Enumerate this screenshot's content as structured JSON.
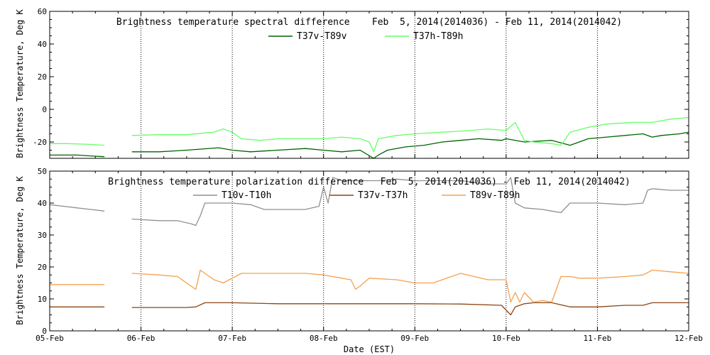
{
  "chart_data": [
    {
      "type": "line",
      "title": "Brightness temperature spectral difference    Feb  5, 2014(2014036) - Feb 11, 2014(2014042)",
      "ylabel": "Brightness Temperature, Deg K",
      "xlabel": "",
      "xlim": [
        0,
        7
      ],
      "ylim": [
        -30,
        60
      ],
      "yticks": [
        -20,
        0,
        20,
        40,
        60
      ],
      "yticklabels": [
        "-20",
        "0",
        "20",
        "40",
        "60"
      ],
      "grid_x": [
        1,
        2,
        3,
        4,
        5,
        6
      ],
      "series": [
        {
          "name": "T37v-T89v",
          "color": "#006400",
          "segments": [
            {
              "x": [
                0,
                0.15,
                0.3,
                0.45,
                0.6
              ],
              "y": [
                -28,
                -28,
                -28,
                -28.5,
                -29
              ]
            },
            {
              "x": [
                0.9,
                1.2,
                1.5,
                1.85,
                2.0,
                2.2,
                2.5,
                2.8,
                3.0,
                3.2,
                3.4,
                3.55,
                3.6,
                3.7,
                3.9,
                4.1,
                4.3,
                4.5,
                4.7,
                4.95,
                5.0,
                5.2,
                5.5,
                5.7,
                5.9,
                6.1,
                6.3,
                6.5,
                6.6,
                6.7,
                6.9,
                7.0
              ],
              "y": [
                -26,
                -26,
                -25,
                -23.5,
                -25,
                -26,
                -25,
                -24,
                -25,
                -26,
                -25,
                -30,
                -28,
                -25,
                -23,
                -22,
                -20,
                -19,
                -18,
                -19,
                -18,
                -20,
                -19,
                -22,
                -18,
                -17,
                -16,
                -15,
                -17,
                -16,
                -15,
                -14
              ]
            }
          ]
        },
        {
          "name": "T37h-T89h",
          "color": "#66ff66",
          "segments": [
            {
              "x": [
                0,
                0.2,
                0.45,
                0.6
              ],
              "y": [
                -21,
                -21,
                -21.5,
                -22
              ]
            },
            {
              "x": [
                0.9,
                1.2,
                1.5,
                1.8,
                1.9,
                2.0,
                2.1,
                2.3,
                2.5,
                2.8,
                3.0,
                3.2,
                3.4,
                3.5,
                3.55,
                3.6,
                3.8,
                4.0,
                4.3,
                4.6,
                4.8,
                5.0,
                5.1,
                5.2,
                5.3,
                5.5,
                5.6,
                5.7,
                5.9,
                6.1,
                6.4,
                6.6,
                6.8,
                7.0
              ],
              "y": [
                -16,
                -15.5,
                -15.5,
                -14,
                -12,
                -14,
                -18,
                -19,
                -18,
                -18,
                -18,
                -17,
                -18,
                -20,
                -26,
                -18,
                -16,
                -15,
                -14,
                -13,
                -12,
                -13,
                -8,
                -19,
                -20,
                -21,
                -22,
                -14,
                -11,
                -9,
                -8,
                -8,
                -6,
                -5
              ]
            }
          ]
        }
      ]
    },
    {
      "type": "line",
      "title": "Brightness temperature polarization difference   Feb  5, 2014(2014036) - Feb 11, 2014(2014042)",
      "ylabel": "Brightness Temperature, Deg K",
      "xlabel": "Date (EST)",
      "xlim": [
        0,
        7
      ],
      "ylim": [
        0,
        50
      ],
      "yticks": [
        0,
        10,
        20,
        30,
        40,
        50
      ],
      "yticklabels": [
        "0",
        "10",
        "20",
        "30",
        "40",
        "50"
      ],
      "grid_x": [
        1,
        2,
        3,
        4,
        5,
        6
      ],
      "xticklabels": [
        "05-Feb",
        "06-Feb",
        "07-Feb",
        "08-Feb",
        "09-Feb",
        "10-Feb",
        "11-Feb",
        "12-Feb"
      ],
      "series": [
        {
          "name": "T10v-T10h",
          "color": "#909090",
          "segments": [
            {
              "x": [
                0,
                0.15,
                0.3,
                0.45,
                0.6
              ],
              "y": [
                39.5,
                39,
                38.5,
                38,
                37.5
              ]
            },
            {
              "x": [
                0.9,
                1.2,
                1.4,
                1.55,
                1.6,
                1.65,
                1.7,
                1.75,
                1.8,
                2.0,
                2.2,
                2.35,
                2.4,
                2.5,
                2.6,
                2.8,
                2.95,
                3.0,
                3.05,
                3.1,
                3.2,
                3.3,
                3.4,
                3.6,
                3.8,
                4.0,
                4.2,
                4.5,
                4.8,
                5.0,
                5.05,
                5.1,
                5.2,
                5.4,
                5.5,
                5.6,
                5.7,
                6.0,
                6.3,
                6.5,
                6.55,
                6.6,
                6.8,
                7.0
              ],
              "y": [
                35,
                34.5,
                34.5,
                33.5,
                33,
                36,
                40,
                40,
                40,
                40,
                39.5,
                38,
                38,
                38,
                38,
                38,
                39,
                45,
                40,
                48,
                47,
                47,
                47,
                47,
                47.5,
                47,
                47,
                47,
                46,
                46,
                48,
                40,
                38.5,
                38,
                37.5,
                37,
                40,
                40,
                39.5,
                40,
                44,
                44.5,
                44,
                44
              ]
            }
          ]
        },
        {
          "name": "T37v-T37h",
          "color": "#8b4513",
          "segments": [
            {
              "x": [
                0,
                0.3,
                0.6
              ],
              "y": [
                7.5,
                7.5,
                7.5
              ]
            },
            {
              "x": [
                0.9,
                1.2,
                1.5,
                1.6,
                1.7,
                2.0,
                2.5,
                3.0,
                3.5,
                4.0,
                4.5,
                4.95,
                5.05,
                5.1,
                5.2,
                5.3,
                5.5,
                5.7,
                6.0,
                6.3,
                6.5,
                6.6,
                7.0
              ],
              "y": [
                7.3,
                7.3,
                7.3,
                7.5,
                8.8,
                8.8,
                8.5,
                8.5,
                8.5,
                8.5,
                8.4,
                8,
                5,
                7.5,
                8.5,
                8.8,
                8.8,
                7.5,
                7.5,
                8,
                8,
                8.8,
                8.8
              ]
            }
          ]
        },
        {
          "name": "T89v-T89h",
          "color": "#f5a050",
          "segments": [
            {
              "x": [
                0,
                0.3,
                0.6
              ],
              "y": [
                14.5,
                14.5,
                14.5
              ]
            },
            {
              "x": [
                0.9,
                1.2,
                1.4,
                1.6,
                1.65,
                1.7,
                1.8,
                1.9,
                2.1,
                2.3,
                2.5,
                2.8,
                3.0,
                3.1,
                3.2,
                3.3,
                3.35,
                3.4,
                3.5,
                3.8,
                4.0,
                4.2,
                4.5,
                4.8,
                5.0,
                5.05,
                5.1,
                5.15,
                5.2,
                5.3,
                5.4,
                5.5,
                5.6,
                5.7,
                5.8,
                6.0,
                6.3,
                6.5,
                6.6,
                6.8,
                7.0
              ],
              "y": [
                18,
                17.5,
                17,
                13,
                19,
                18,
                16,
                15,
                18,
                18,
                18,
                18,
                17.5,
                17,
                16.5,
                16,
                13,
                14,
                16.5,
                16,
                15,
                15,
                18,
                16,
                16,
                9,
                12,
                9,
                12,
                9,
                9.5,
                9,
                17,
                17,
                16.5,
                16.5,
                17,
                17.5,
                19,
                18.5,
                18
              ]
            }
          ]
        }
      ]
    }
  ]
}
